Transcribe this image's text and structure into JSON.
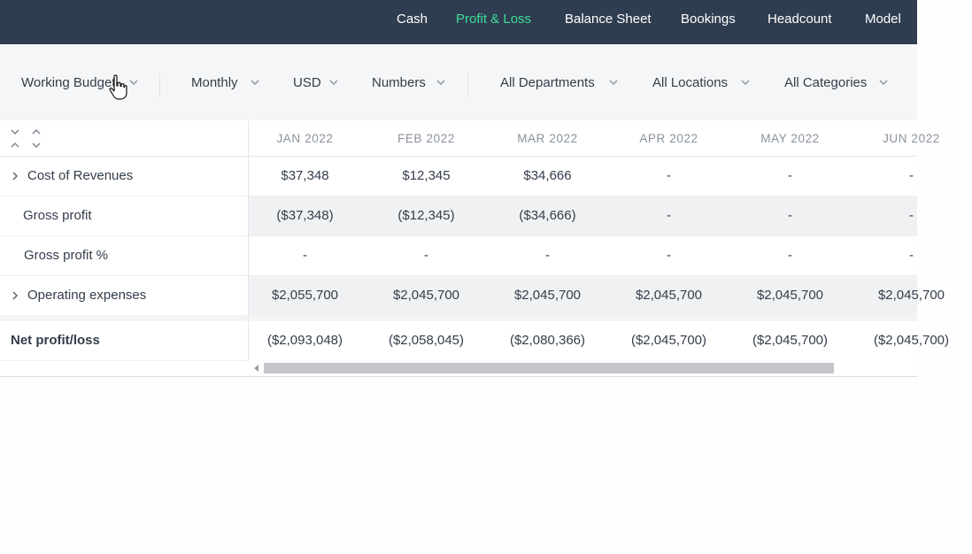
{
  "nav": {
    "items": [
      {
        "label": "Cash",
        "active": false
      },
      {
        "label": "Profit & Loss",
        "active": true
      },
      {
        "label": "Balance Sheet",
        "active": false
      },
      {
        "label": "Bookings",
        "active": false
      },
      {
        "label": "Headcount",
        "active": false
      },
      {
        "label": "Model",
        "active": false
      }
    ],
    "active_color": "#3ddc97",
    "background": "#2f3d50"
  },
  "filters": {
    "scenario": "Working Budget",
    "period": "Monthly",
    "currency": "USD",
    "format": "Numbers",
    "departments": "All Departments",
    "locations": "All Locations",
    "categories": "All Categories"
  },
  "table": {
    "months": [
      "JAN 2022",
      "FEB 2022",
      "MAR 2022",
      "APR 2022",
      "MAY 2022",
      "JUN 2022"
    ],
    "rows": [
      {
        "label": "Cost of Revenues",
        "expandable": true,
        "values": [
          "$37,348",
          "$12,345",
          "$34,666",
          "-",
          "-",
          "-"
        ]
      },
      {
        "label": "Gross profit",
        "expandable": false,
        "values": [
          "($37,348)",
          "($12,345)",
          "($34,666)",
          "-",
          "-",
          "-"
        ]
      },
      {
        "label": "Gross profit %",
        "expandable": false,
        "values": [
          "-",
          "-",
          "-",
          "-",
          "-",
          "-"
        ]
      },
      {
        "label": "Operating expenses",
        "expandable": true,
        "values": [
          "$2,055,700",
          "$2,045,700",
          "$2,045,700",
          "$2,045,700",
          "$2,045,700",
          "$2,045,700"
        ]
      }
    ],
    "total": {
      "label": "Net profit/loss",
      "values": [
        "($2,093,048)",
        "($2,058,045)",
        "($2,080,366)",
        "($2,045,700)",
        "($2,045,700)",
        "($2,045,700)"
      ]
    }
  }
}
